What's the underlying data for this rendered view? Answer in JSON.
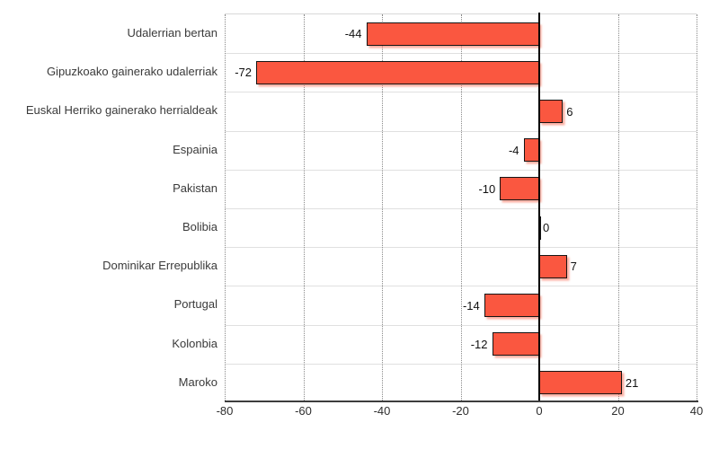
{
  "chart_data": {
    "type": "bar",
    "orientation": "horizontal",
    "title": "",
    "xlabel": "",
    "ylabel": "",
    "categories": [
      "Udalerrian bertan",
      "Gipuzkoako gainerako udalerriak",
      "Euskal Herriko gainerako herrialdeak",
      "Espainia",
      "Pakistan",
      "Bolibia",
      "Dominikar Errepublika",
      "Portugal",
      "Kolonbia",
      "Maroko"
    ],
    "values": [
      -44,
      -72,
      6,
      -4,
      -10,
      0,
      7,
      -14,
      -12,
      21
    ],
    "value_labels": [
      "-44",
      "-72",
      "6",
      "-4",
      "-10",
      "0",
      "7",
      "-14",
      "-12",
      "21"
    ],
    "xlim": [
      -80,
      40
    ],
    "x_ticks": [
      -80,
      -60,
      -40,
      -20,
      0,
      20,
      40
    ],
    "x_tick_labels": [
      "-80",
      "-60",
      "-40",
      "-20",
      "0",
      "20",
      "40"
    ],
    "grid": "vertical dotted gridlines at each x tick, horizontal light row separators",
    "legend": "none",
    "colors": {
      "bar_fill": "#fa5740",
      "bar_border": "#151515",
      "bar_shadow": "#f9b2a2",
      "zero_line": "#000000",
      "axis_line": "#3d3d3d",
      "grid_dotted": "#8a8a8a",
      "row_separator": "#e0e0e0",
      "plot_top_border": "#d8d8d8",
      "category_text": "#3a3a3a",
      "value_text": "#111111",
      "tick_text": "#2e2e2e",
      "background": "#ffffff"
    }
  }
}
